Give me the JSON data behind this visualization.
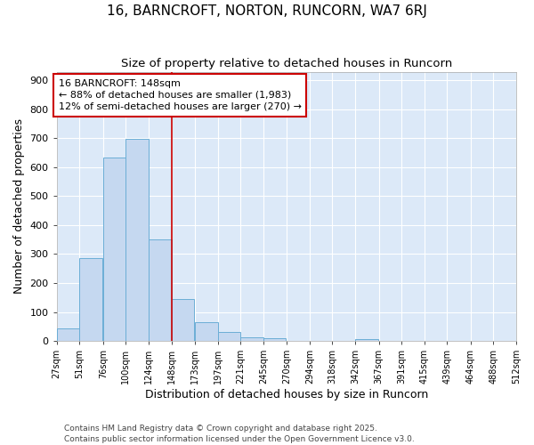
{
  "title": "16, BARNCROFT, NORTON, RUNCORN, WA7 6RJ",
  "subtitle": "Size of property relative to detached houses in Runcorn",
  "xlabel": "Distribution of detached houses by size in Runcorn",
  "ylabel": "Number of detached properties",
  "bins": [
    27,
    51,
    76,
    100,
    124,
    148,
    173,
    197,
    221,
    245,
    270,
    294,
    318,
    342,
    367,
    391,
    415,
    439,
    464,
    488,
    512
  ],
  "values": [
    42,
    285,
    632,
    697,
    350,
    145,
    64,
    30,
    12,
    8,
    0,
    0,
    0,
    5,
    0,
    0,
    0,
    0,
    0,
    0
  ],
  "bar_color": "#c5d8f0",
  "bar_edge_color": "#6baed6",
  "bg_color": "#dce9f8",
  "grid_color": "#ffffff",
  "vline_x": 148,
  "vline_color": "#cc0000",
  "annotation_text": "16 BARNCROFT: 148sqm\n← 88% of detached houses are smaller (1,983)\n12% of semi-detached houses are larger (270) →",
  "footnote": "Contains HM Land Registry data © Crown copyright and database right 2025.\nContains public sector information licensed under the Open Government Licence v3.0.",
  "ylim": [
    0,
    930
  ],
  "yticks": [
    0,
    100,
    200,
    300,
    400,
    500,
    600,
    700,
    800,
    900
  ]
}
